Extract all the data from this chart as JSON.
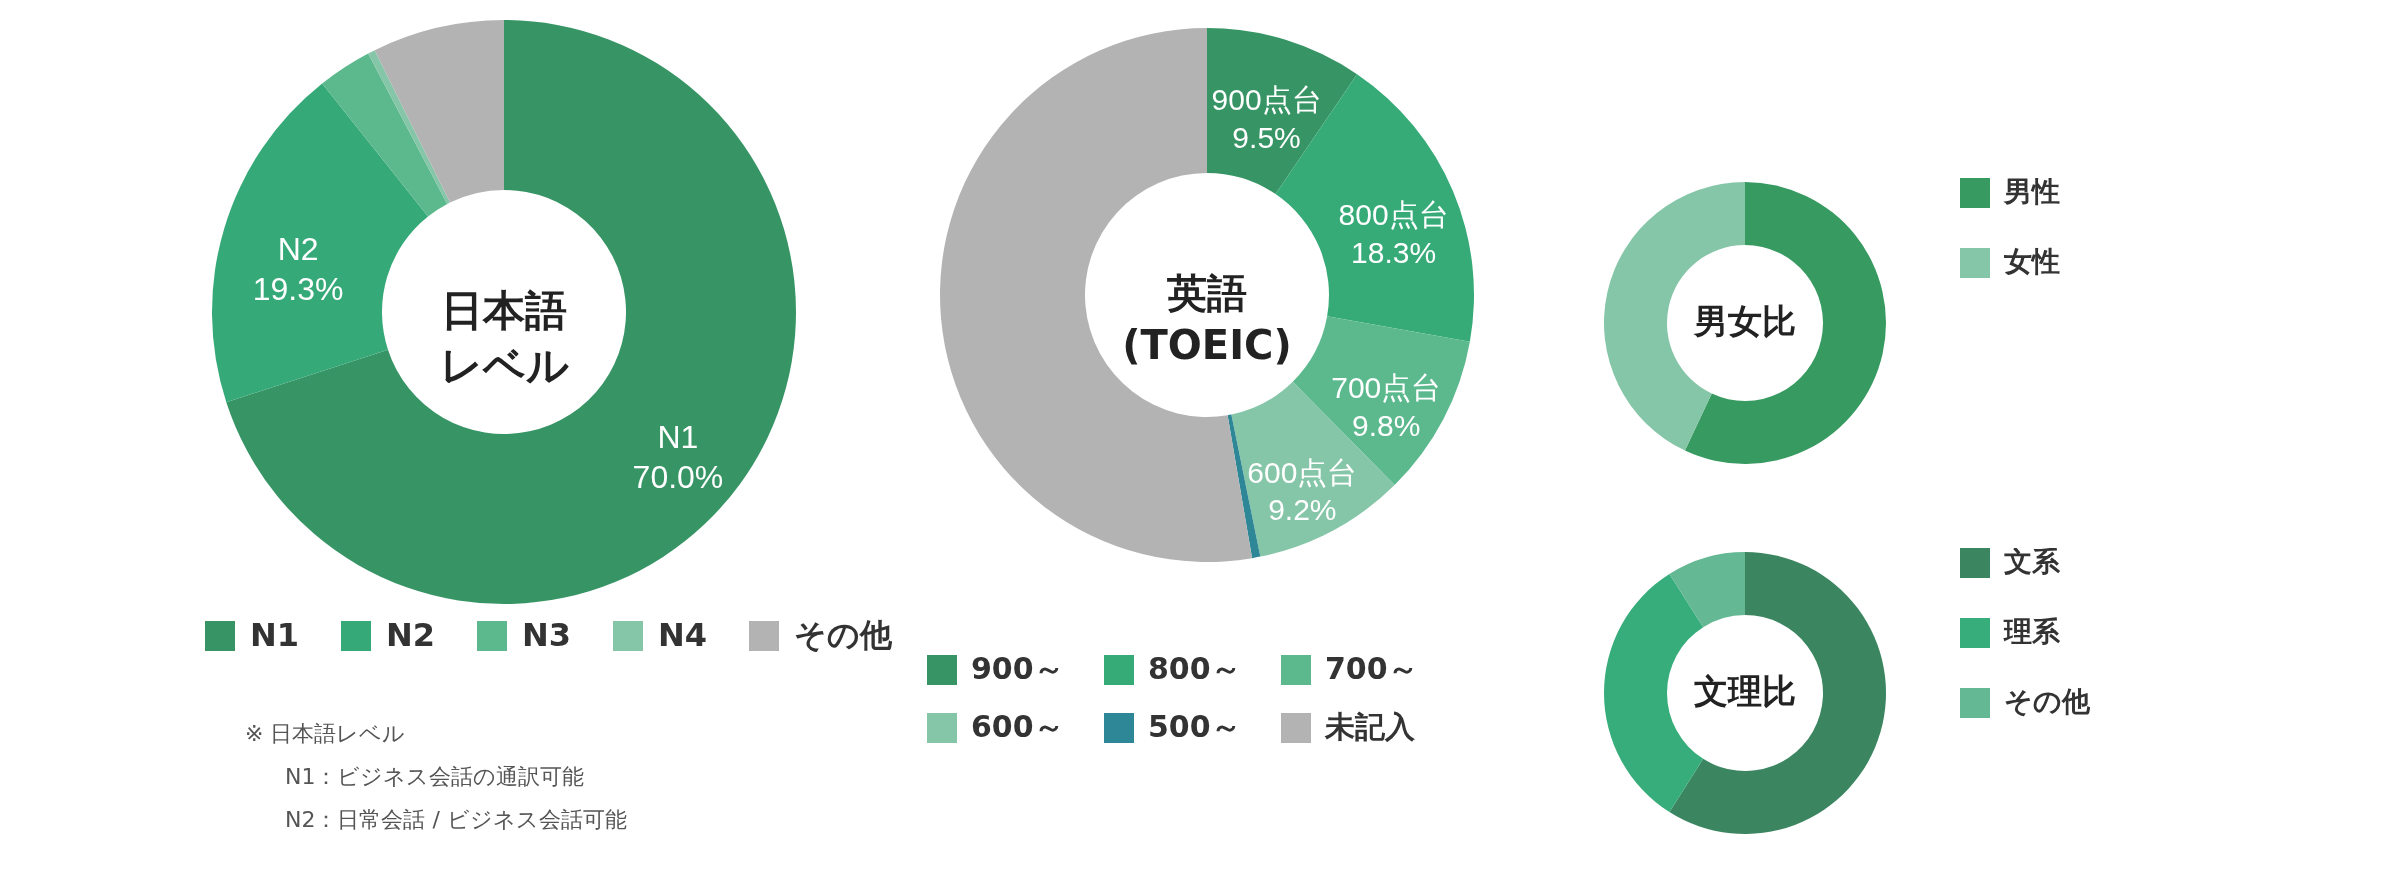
{
  "chart_data": [
    {
      "type": "donut",
      "title": "日本語レベル",
      "categories": [
        "N1",
        "N2",
        "N3",
        "N4",
        "その他"
      ],
      "values": [
        70.0,
        19.3,
        3.0,
        0.4,
        7.3
      ],
      "colors": [
        "#379565",
        "#36a978",
        "#5cb98e",
        "#86c6a8",
        "#b3b3b3"
      ],
      "value_labels": [
        "N1\n70.0%",
        "N2\n19.3%",
        null,
        null,
        null
      ],
      "legend": "bottom",
      "annotations": [
        "※ 日本語レベル",
        "N1：ビジネス会話の通訳可能",
        "N2：日常会話 / ビジネス会話可能"
      ]
    },
    {
      "type": "donut",
      "title": "英語 (TOEIC)",
      "categories": [
        "900～",
        "800～",
        "700～",
        "600～",
        "500～",
        "未記入"
      ],
      "values": [
        9.5,
        18.3,
        9.8,
        9.2,
        0.5,
        52.7
      ],
      "colors": [
        "#379565",
        "#36ab78",
        "#5cb98e",
        "#86c6a8",
        "#2e8796",
        "#b3b3b3"
      ],
      "value_labels": [
        "900点台\n9.5%",
        "800点台\n18.3%",
        "700点台\n9.8%",
        "600点台\n9.2%",
        null,
        null
      ],
      "legend": "bottom"
    },
    {
      "type": "donut",
      "title": "男女比",
      "categories": [
        "男性",
        "女性"
      ],
      "values": [
        57,
        43
      ],
      "colors": [
        "#379a60",
        "#86c6a8"
      ],
      "legend": "right"
    },
    {
      "type": "donut",
      "title": "文理比",
      "categories": [
        "文系",
        "理系",
        "その他"
      ],
      "values": [
        59,
        32,
        9
      ],
      "colors": [
        "#3b8660",
        "#36ad7a",
        "#64b894"
      ],
      "legend": "right"
    }
  ]
}
